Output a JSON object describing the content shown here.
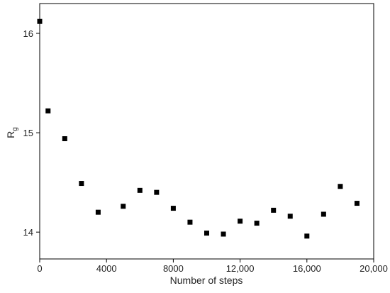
{
  "chart_data": {
    "type": "scatter",
    "x_label": "Number of steps",
    "y_label": "R",
    "y_label_subscript": "g",
    "x": [
      0,
      500,
      1500,
      2500,
      3500,
      5000,
      6000,
      7000,
      8000,
      9000,
      10000,
      11000,
      12000,
      13000,
      14000,
      15000,
      16000,
      17000,
      18000,
      19000
    ],
    "series": [
      {
        "color": "#000000",
        "values": [
          16.12,
          15.22,
          14.94,
          14.49,
          14.2,
          14.26,
          14.42,
          14.4,
          14.24,
          14.1,
          13.99,
          13.98,
          14.11,
          14.09,
          14.22,
          14.16,
          13.96,
          14.18,
          14.46,
          14.29
        ]
      }
    ],
    "xlim": [
      0,
      20000
    ],
    "xticks": [
      0,
      4000,
      8000,
      {
        "value": 12000,
        "label": "12,000"
      },
      {
        "value": 16000,
        "label": "16,000"
      },
      {
        "value": 20000,
        "label": "20,000"
      }
    ],
    "ylim": [
      13.73,
      16.3
    ],
    "yticks": [
      14,
      15,
      16
    ]
  }
}
